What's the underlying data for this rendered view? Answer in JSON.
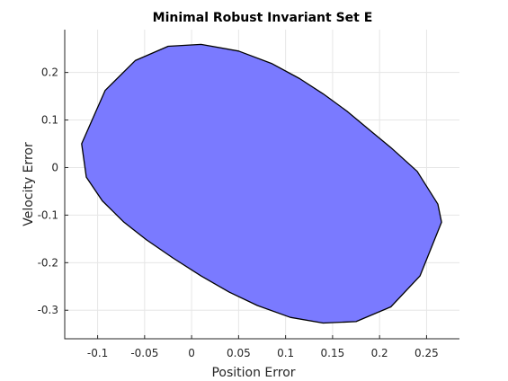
{
  "chart_data": {
    "type": "area",
    "title": "Minimal Robust Invariant Set E",
    "xlabel": "Position Error",
    "ylabel": "Velocity Error",
    "xlim": [
      -0.135,
      0.285
    ],
    "ylim": [
      -0.36,
      0.29
    ],
    "grid": true,
    "fill_color": "#7a7aff",
    "edge_color": "#000000",
    "xticks": [
      {
        "value": -0.1,
        "label": "-0.1"
      },
      {
        "value": -0.05,
        "label": "-0.05"
      },
      {
        "value": 0,
        "label": "0"
      },
      {
        "value": 0.05,
        "label": "0.05"
      },
      {
        "value": 0.1,
        "label": "0.1"
      },
      {
        "value": 0.15,
        "label": "0.15"
      },
      {
        "value": 0.2,
        "label": "0.2"
      },
      {
        "value": 0.25,
        "label": "0.25"
      }
    ],
    "yticks": [
      {
        "value": 0.2,
        "label": "0.2"
      },
      {
        "value": 0.1,
        "label": "0.1"
      },
      {
        "value": 0,
        "label": "0"
      },
      {
        "value": -0.1,
        "label": "-0.1"
      },
      {
        "value": -0.2,
        "label": "-0.2"
      },
      {
        "value": -0.3,
        "label": "-0.3"
      }
    ],
    "polygon": [
      {
        "x": 0.01,
        "y": 0.259
      },
      {
        "x": 0.05,
        "y": 0.245
      },
      {
        "x": 0.085,
        "y": 0.219
      },
      {
        "x": 0.115,
        "y": 0.187
      },
      {
        "x": 0.14,
        "y": 0.155
      },
      {
        "x": 0.165,
        "y": 0.119
      },
      {
        "x": 0.19,
        "y": 0.078
      },
      {
        "x": 0.212,
        "y": 0.042
      },
      {
        "x": 0.24,
        "y": -0.008
      },
      {
        "x": 0.262,
        "y": -0.077
      },
      {
        "x": 0.266,
        "y": -0.115
      },
      {
        "x": 0.243,
        "y": -0.228
      },
      {
        "x": 0.212,
        "y": -0.293
      },
      {
        "x": 0.175,
        "y": -0.324
      },
      {
        "x": 0.14,
        "y": -0.327
      },
      {
        "x": 0.105,
        "y": -0.315
      },
      {
        "x": 0.07,
        "y": -0.29
      },
      {
        "x": 0.04,
        "y": -0.262
      },
      {
        "x": 0.01,
        "y": -0.228
      },
      {
        "x": -0.02,
        "y": -0.19
      },
      {
        "x": -0.048,
        "y": -0.152
      },
      {
        "x": -0.072,
        "y": -0.115
      },
      {
        "x": -0.095,
        "y": -0.07
      },
      {
        "x": -0.112,
        "y": -0.02
      },
      {
        "x": -0.117,
        "y": 0.05
      },
      {
        "x": -0.092,
        "y": 0.162
      },
      {
        "x": -0.06,
        "y": 0.225
      },
      {
        "x": -0.025,
        "y": 0.255
      }
    ]
  }
}
